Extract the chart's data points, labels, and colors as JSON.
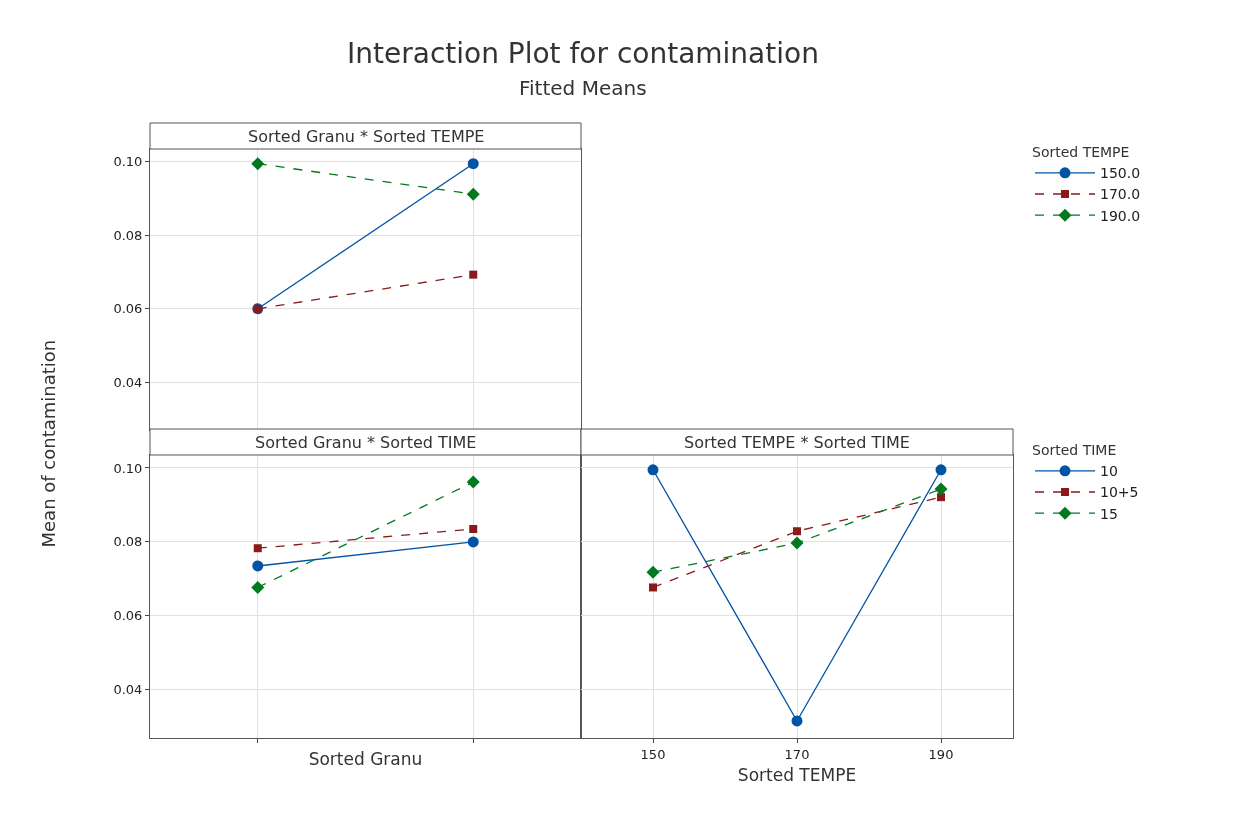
{
  "chart_data": [
    {
      "type": "line",
      "title": "Sorted Granu * Sorted TEMPE",
      "annotations": [
        "Interaction Plot for contamination",
        "Fitted Means"
      ],
      "ylabel": "Mean of contamination",
      "categories": [
        null,
        null
      ],
      "ylim": [
        0.027,
        0.1035
      ],
      "yticks": [
        0.04,
        0.06,
        0.08,
        {
          "value": 0.1,
          "label": "0.10"
        }
      ],
      "grid": true,
      "tick_labels": "y",
      "legend": "right",
      "legend_title": "Sorted TEMPE",
      "series": [
        {
          "name": "150.0",
          "color": "#0054a6",
          "values": [
            0.06,
            0.0995
          ],
          "marker": "circle",
          "line_style": "solid"
        },
        {
          "name": "170.0",
          "color": "#8b1a1a",
          "values": [
            0.06,
            0.0693
          ],
          "marker": "square",
          "line_style": "dashed"
        },
        {
          "name": "190.0",
          "color": "#00791f",
          "values": [
            0.0995,
            0.0912
          ],
          "marker": "diamond",
          "line_style": "dashed"
        }
      ]
    },
    {
      "type": "line",
      "title": "Sorted Granu * Sorted TIME",
      "xlabel": "Sorted Granu",
      "categories": [
        null,
        null
      ],
      "ylim": [
        0.027,
        0.1035
      ],
      "yticks": [
        0.04,
        0.06,
        0.08,
        {
          "value": 0.1,
          "label": "0.10"
        }
      ],
      "grid": true,
      "series": [
        {
          "color": "#0054a6",
          "values": [
            0.0735,
            0.08
          ],
          "marker": "circle",
          "line_style": "solid"
        },
        {
          "color": "#8b1a1a",
          "values": [
            0.0783,
            0.0835
          ],
          "marker": "square",
          "line_style": "dashed"
        },
        {
          "color": "#00791f",
          "values": [
            0.0677,
            0.0962
          ],
          "marker": "diamond",
          "line_style": "dashed"
        }
      ]
    },
    {
      "type": "line",
      "title": "Sorted TEMPE * Sorted TIME",
      "xlabel": "Sorted TEMPE",
      "categories": [
        "150",
        "170",
        "190"
      ],
      "ylim": [
        0.027,
        0.1035
      ],
      "yticks": [
        0.04,
        0.06,
        0.08,
        0.1
      ],
      "grid": true,
      "tick_labels": "x",
      "legend": "right",
      "legend_title": "Sorted TIME",
      "series": [
        {
          "name": "10",
          "color": "#0054a6",
          "values": [
            0.0995,
            0.0316,
            0.0995
          ],
          "marker": "circle",
          "line_style": "solid"
        },
        {
          "name": "10+5",
          "color": "#8b1a1a",
          "values": [
            0.0677,
            0.0829,
            0.0921
          ],
          "marker": "square",
          "line_style": "dashed"
        },
        {
          "name": "15",
          "color": "#00791f",
          "values": [
            0.0718,
            0.0797,
            0.0943
          ],
          "marker": "diamond",
          "line_style": "dashed"
        }
      ]
    }
  ]
}
